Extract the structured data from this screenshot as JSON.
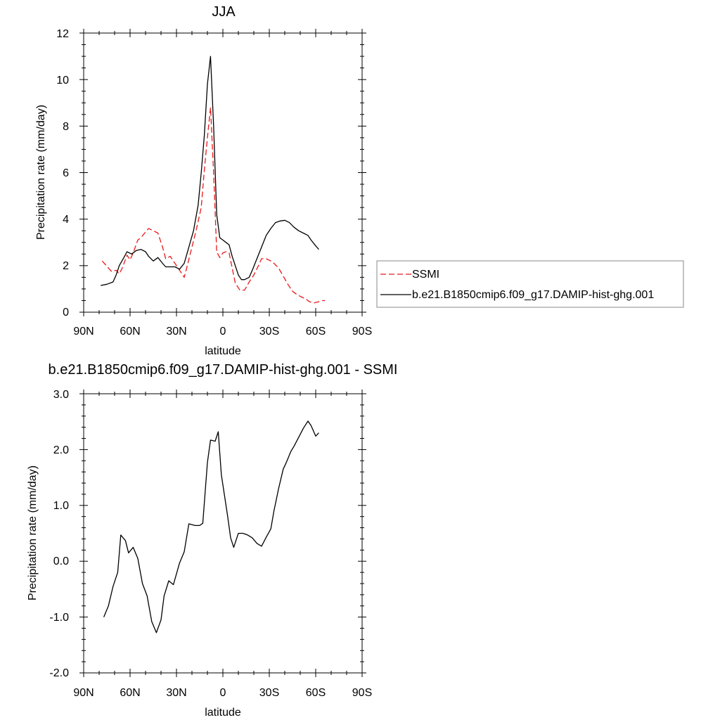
{
  "chart_data": [
    {
      "type": "line",
      "title": "JJA",
      "xlabel": "latitude",
      "ylabel": "Precipitation rate (mm/day)",
      "x_ticks": [
        "90N",
        "60N",
        "30N",
        "0",
        "30S",
        "60S",
        "90S"
      ],
      "x_tick_values": [
        90,
        60,
        30,
        0,
        -30,
        -60,
        -90
      ],
      "xlim": [
        90,
        -90
      ],
      "y_ticks": [
        "0",
        "2",
        "4",
        "6",
        "8",
        "10",
        "12"
      ],
      "y_tick_values": [
        0,
        2,
        4,
        6,
        8,
        10,
        12
      ],
      "ylim": [
        0,
        12
      ],
      "legend_position": "right",
      "series": [
        {
          "name": "SSMI",
          "color": "#e8191a",
          "dash": "dashed",
          "x": [
            78,
            76,
            72,
            69,
            67,
            65,
            62,
            60,
            58,
            55,
            53,
            50,
            48,
            45,
            42,
            39,
            37,
            34,
            31,
            28,
            25,
            23,
            20,
            17,
            14,
            12,
            10,
            8,
            6,
            4,
            2,
            0,
            -2,
            -4,
            -6,
            -8,
            -11,
            -14,
            -17,
            -20,
            -23,
            -25,
            -28,
            -31,
            -33,
            -36,
            -39,
            -42,
            -45,
            -48,
            -51,
            -54,
            -56,
            -59,
            -62,
            -64,
            -66
          ],
          "y": [
            2.2,
            2.05,
            1.75,
            1.8,
            1.65,
            1.9,
            2.45,
            2.25,
            2.55,
            3.1,
            3.2,
            3.45,
            3.6,
            3.5,
            3.4,
            2.8,
            2.3,
            2.4,
            2.1,
            1.8,
            1.5,
            2.0,
            2.8,
            3.6,
            4.5,
            6.1,
            7.5,
            8.8,
            6.0,
            2.6,
            2.35,
            2.55,
            2.6,
            2.55,
            1.9,
            1.25,
            0.95,
            0.95,
            1.3,
            1.6,
            2.0,
            2.3,
            2.3,
            2.2,
            2.1,
            1.9,
            1.55,
            1.2,
            0.9,
            0.75,
            0.65,
            0.55,
            0.45,
            0.4,
            0.45,
            0.5,
            0.5
          ]
        },
        {
          "name": "b.e21.B1850cmip6.f09_g17.DAMIP-hist-ghg.001",
          "color": "#000000",
          "dash": "solid",
          "x": [
            79,
            75,
            71,
            69,
            67,
            64,
            62,
            59,
            56,
            53,
            50,
            48,
            45,
            42,
            39,
            37,
            34,
            31,
            28,
            25,
            22,
            19,
            16,
            14,
            12,
            10,
            8,
            6,
            4,
            2,
            0,
            -2,
            -4,
            -6,
            -8,
            -10,
            -12,
            -14,
            -17,
            -19,
            -22,
            -25,
            -28,
            -31,
            -34,
            -37,
            -40,
            -43,
            -46,
            -49,
            -52,
            -55,
            -57,
            -60,
            -62
          ],
          "y": [
            1.15,
            1.2,
            1.3,
            1.6,
            2.0,
            2.35,
            2.6,
            2.5,
            2.65,
            2.7,
            2.6,
            2.4,
            2.2,
            2.35,
            2.1,
            1.95,
            1.95,
            1.95,
            1.85,
            2.1,
            2.8,
            3.5,
            4.6,
            6.0,
            7.6,
            9.8,
            11.0,
            8.0,
            4.2,
            3.2,
            3.1,
            3.0,
            2.9,
            2.4,
            2.0,
            1.6,
            1.4,
            1.4,
            1.5,
            1.8,
            2.3,
            2.8,
            3.3,
            3.6,
            3.85,
            3.92,
            3.95,
            3.85,
            3.65,
            3.5,
            3.4,
            3.3,
            3.1,
            2.85,
            2.7
          ]
        }
      ]
    },
    {
      "type": "line",
      "title": "b.e21.B1850cmip6.f09_g17.DAMIP-hist-ghg.001 - SSMI",
      "xlabel": "latitude",
      "ylabel": "Precipitation rate (mm/day)",
      "x_ticks": [
        "90N",
        "60N",
        "30N",
        "0",
        "30S",
        "60S",
        "90S"
      ],
      "x_tick_values": [
        90,
        60,
        30,
        0,
        -30,
        -60,
        -90
      ],
      "xlim": [
        90,
        -90
      ],
      "y_ticks": [
        "-2.0",
        "-1.0",
        "0.0",
        "1.0",
        "2.0",
        "3.0"
      ],
      "y_tick_values": [
        -2,
        -1,
        0,
        1,
        2,
        3
      ],
      "ylim": [
        -2,
        3
      ],
      "series": [
        {
          "color": "#000000",
          "dash": "solid",
          "x": [
            77,
            74,
            71,
            68,
            66,
            63,
            61,
            58,
            55,
            52,
            49,
            46,
            43,
            40,
            38,
            35,
            32,
            28,
            25,
            22,
            18,
            15,
            13,
            10,
            8,
            5,
            3,
            1,
            -3,
            -5,
            -7,
            -10,
            -13,
            -16,
            -19,
            -22,
            -25,
            -28,
            -31,
            -33,
            -36,
            -39,
            -41,
            -44,
            -46,
            -49,
            -52,
            -55,
            -57,
            -60,
            -62
          ],
          "y": [
            -1.0,
            -0.8,
            -0.45,
            -0.2,
            0.47,
            0.37,
            0.15,
            0.25,
            0.05,
            -0.4,
            -0.62,
            -1.08,
            -1.28,
            -1.05,
            -0.62,
            -0.35,
            -0.42,
            -0.03,
            0.17,
            0.67,
            0.64,
            0.64,
            0.68,
            1.77,
            2.17,
            2.15,
            2.32,
            1.55,
            0.82,
            0.42,
            0.25,
            0.5,
            0.5,
            0.47,
            0.42,
            0.32,
            0.27,
            0.43,
            0.58,
            0.9,
            1.3,
            1.65,
            1.77,
            1.97,
            2.06,
            2.22,
            2.38,
            2.51,
            2.43,
            2.24,
            2.3
          ]
        }
      ]
    }
  ]
}
